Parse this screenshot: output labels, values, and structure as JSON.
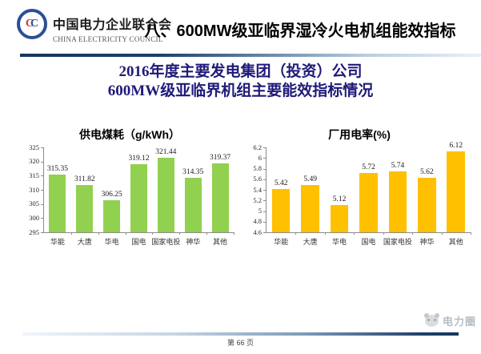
{
  "header": {
    "title": "八、600MW级亚临界湿冷火电机组能效指标",
    "logo": {
      "emblem_letter_red": "C",
      "emblem_letter_blue": "C",
      "org_name_cn": "中国电力企业联合会",
      "org_name_en": "CHINA ELECTRICITY COUNCIL"
    }
  },
  "subtitle": {
    "line1": "2016年度主要发电集团（投资）公司",
    "line2": "600MW级亚临界机组主要能效指标情况"
  },
  "chart_data": [
    {
      "type": "bar",
      "title": "供电煤耗（g/kWh）",
      "categories": [
        "华能",
        "大唐",
        "华电",
        "国电",
        "国家电投",
        "神华",
        "其他"
      ],
      "values": [
        315.35,
        311.82,
        306.25,
        319.12,
        321.44,
        314.35,
        319.37
      ],
      "ylim": [
        295,
        325
      ],
      "yticks": [
        295,
        300,
        305,
        310,
        315,
        320,
        325
      ],
      "bar_color": "#92D050",
      "grid": false,
      "legend": false,
      "value_labels": true
    },
    {
      "type": "bar",
      "title": "厂用电率(%)",
      "categories": [
        "华能",
        "大唐",
        "华电",
        "国电",
        "国家电投",
        "神华",
        "其他"
      ],
      "values": [
        5.42,
        5.49,
        5.12,
        5.72,
        5.74,
        5.62,
        6.12
      ],
      "ylim": [
        4.6,
        6.2
      ],
      "yticks": [
        4.6,
        4.8,
        5,
        5.2,
        5.4,
        5.6,
        5.8,
        6,
        6.2
      ],
      "bar_color": "#FFC000",
      "grid": false,
      "legend": false,
      "value_labels": true
    }
  ],
  "footer": {
    "page_number": "第 66 页",
    "watermark_text": "电力圈"
  },
  "colors": {
    "bar_green": "#92D050",
    "bar_yellow": "#FFC000",
    "subtitle_navy": "#1f1a78",
    "rule_dark": "#16365c",
    "rule_light": "#e8f1f8"
  }
}
